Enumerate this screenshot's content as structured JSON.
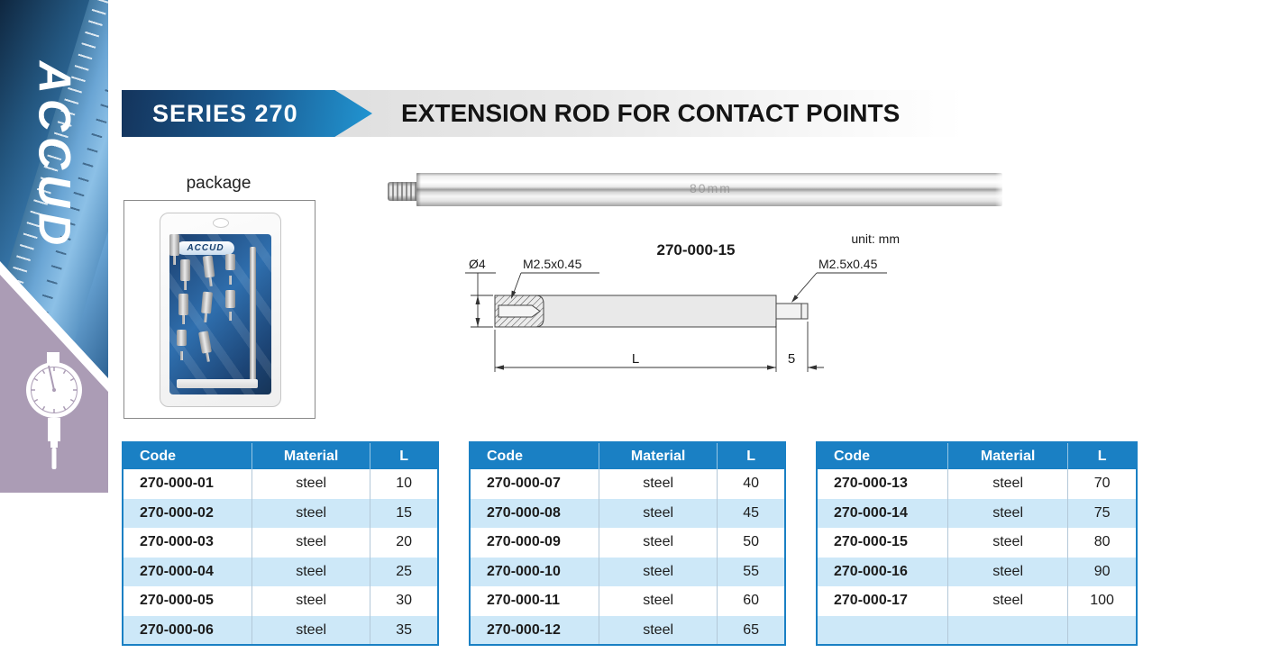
{
  "sidebar": {
    "brand": "ACCUD"
  },
  "header": {
    "series": "SERIES 270",
    "title": "EXTENSION ROD FOR CONTACT POINTS"
  },
  "package": {
    "label": "package",
    "brand": "ACCUD"
  },
  "rod_photo": {
    "engraving": "80mm"
  },
  "drawing": {
    "model": "270-000-15",
    "unit": "unit: mm",
    "diameter": "Ø4",
    "thread_left": "M2.5x0.45",
    "thread_right": "M2.5x0.45",
    "length_label": "L",
    "stud_length": "5"
  },
  "tables": [
    {
      "headers": [
        "Code",
        "Material",
        "L"
      ],
      "rows": [
        [
          "270-000-01",
          "steel",
          "10"
        ],
        [
          "270-000-02",
          "steel",
          "15"
        ],
        [
          "270-000-03",
          "steel",
          "20"
        ],
        [
          "270-000-04",
          "steel",
          "25"
        ],
        [
          "270-000-05",
          "steel",
          "30"
        ],
        [
          "270-000-06",
          "steel",
          "35"
        ]
      ]
    },
    {
      "headers": [
        "Code",
        "Material",
        "L"
      ],
      "rows": [
        [
          "270-000-07",
          "steel",
          "40"
        ],
        [
          "270-000-08",
          "steel",
          "45"
        ],
        [
          "270-000-09",
          "steel",
          "50"
        ],
        [
          "270-000-10",
          "steel",
          "55"
        ],
        [
          "270-000-11",
          "steel",
          "60"
        ],
        [
          "270-000-12",
          "steel",
          "65"
        ]
      ]
    },
    {
      "headers": [
        "Code",
        "Material",
        "L"
      ],
      "rows": [
        [
          "270-000-13",
          "steel",
          "70"
        ],
        [
          "270-000-14",
          "steel",
          "75"
        ],
        [
          "270-000-15",
          "steel",
          "80"
        ],
        [
          "270-000-16",
          "steel",
          "90"
        ],
        [
          "270-000-17",
          "steel",
          "100"
        ],
        [
          "",
          "",
          ""
        ]
      ]
    }
  ],
  "colors": {
    "accent_blue": "#1a80c4",
    "banner_dark": "#14345c",
    "banner_light": "#2196d3",
    "row_alt": "#cde8f8",
    "sidebar_purple": "#ab9cb5"
  }
}
